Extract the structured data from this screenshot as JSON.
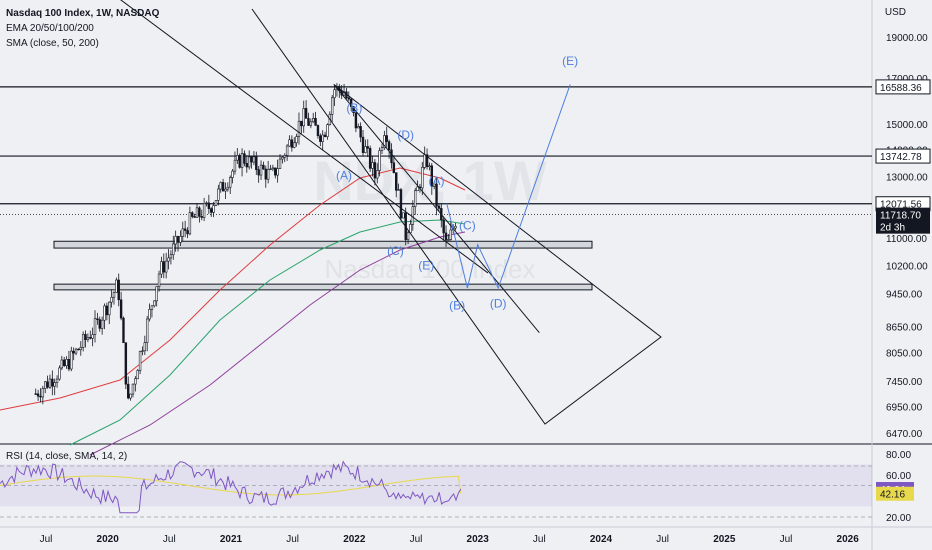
{
  "header": {
    "title": "Nasdaq 100 Index, 1W, NASDAQ",
    "indicator_ema": "EMA 20/50/100/200",
    "indicator_sma": "SMA (close, 50, 200)",
    "rsi_label": "RSI (14, close, SMA, 14, 2)",
    "currency": "USD",
    "watermark_symbol": "NDX, 1W",
    "watermark_name": "Nasdaq 100 Index"
  },
  "colors": {
    "ema_red": "#e03a3e",
    "ema_green": "#2aa36b",
    "ema_purple": "#8e3f9b",
    "wave_blue": "#4f7fe0",
    "rsi_line": "#7e57c2",
    "rsi_sma": "#e8d84c",
    "candles": "#131722"
  },
  "chart_data": [
    {
      "type": "candlestick",
      "x_axis": {
        "tick_labels": [
          "Jul",
          "2020",
          "Jul",
          "2021",
          "Jul",
          "2022",
          "Jul",
          "2023",
          "Jul",
          "2024",
          "Jul",
          "2025",
          "Jul",
          "2026"
        ]
      },
      "y_axis": {
        "scale": "log",
        "ticks": [
          19000,
          17000,
          15000,
          14000,
          13000,
          12000,
          11000,
          10200,
          9450,
          8650,
          8050,
          7450,
          6950,
          6470
        ],
        "tick_labels": [
          "19000.00",
          "17000.00",
          "15000.00",
          "14000.00",
          "13000.00",
          "12000.00",
          "11000.00",
          "10200.00",
          "9450.00",
          "8650.00",
          "8050.00",
          "7450.00",
          "6950.00",
          "6470.00"
        ]
      },
      "price_points": [
        {
          "x": "2019-06",
          "y": 7200
        },
        {
          "x": "2019-09",
          "y": 7800
        },
        {
          "x": "2019-12",
          "y": 8700
        },
        {
          "x": "2020-02",
          "y": 9700
        },
        {
          "x": "2020-03",
          "y": 7000
        },
        {
          "x": "2020-06",
          "y": 10000
        },
        {
          "x": "2020-09",
          "y": 11500
        },
        {
          "x": "2020-11",
          "y": 12000
        },
        {
          "x": "2021-02",
          "y": 13700
        },
        {
          "x": "2021-05",
          "y": 13000
        },
        {
          "x": "2021-08",
          "y": 15300
        },
        {
          "x": "2021-10",
          "y": 14500
        },
        {
          "x": "2021-11",
          "y": 16500
        },
        {
          "x": "2021-12",
          "y": 16400
        },
        {
          "x": "2022-03",
          "y": 13000
        },
        {
          "x": "2022-04",
          "y": 15000
        },
        {
          "x": "2022-06",
          "y": 11100
        },
        {
          "x": "2022-08",
          "y": 13700
        },
        {
          "x": "2022-10",
          "y": 10700
        },
        {
          "x": "2022-11",
          "y": 11718.7
        }
      ],
      "horizontal_levels": [
        {
          "value": 16588.36,
          "label": "16588.36"
        },
        {
          "value": 13742.78,
          "label": "13742.78"
        },
        {
          "value": 12071.56,
          "label": "12071.56"
        }
      ],
      "last_price": {
        "value": 11718.7,
        "label": "11718.70",
        "countdown": "2d 3h"
      },
      "zones": [
        {
          "low": 10700,
          "high": 10900
        },
        {
          "low": 9550,
          "high": 9700
        }
      ],
      "projection_lines": [
        [
          {
            "x": "2019-11",
            "y": 22500
          },
          {
            "x": "2023-02",
            "y": 10000
          }
        ],
        [
          {
            "x": "2021-11",
            "y": 16700
          },
          {
            "x": "2023-07",
            "y": 8500
          }
        ]
      ],
      "elliott_labels": [
        {
          "text": "(B)",
          "x": "2022-01",
          "y": 15500
        },
        {
          "text": "(A)",
          "x": "2021-12",
          "y": 12900
        },
        {
          "text": "(D)",
          "x": "2022-06",
          "y": 14400
        },
        {
          "text": "(C)",
          "x": "2022-05",
          "y": 10500
        },
        {
          "text": "(A)",
          "x": "2022-09",
          "y": 12700
        },
        {
          "text": "(E)",
          "x": "2022-08",
          "y": 10100
        },
        {
          "text": "(C)",
          "x": "2022-12",
          "y": 11250
        },
        {
          "text": "(B)",
          "x": "2022-11",
          "y": 9050
        },
        {
          "text": "(D)",
          "x": "2023-03",
          "y": 9100
        },
        {
          "text": "(E)",
          "x": "2023-10",
          "y": 17600
        }
      ],
      "wave_path": [
        {
          "x": "2022-10",
          "y": 12071.56
        },
        {
          "x": "2022-12",
          "y": 9600
        },
        {
          "x": "2023-01",
          "y": 10800
        },
        {
          "x": "2023-03",
          "y": 9600
        },
        {
          "x": "2023-10",
          "y": 16700
        }
      ],
      "moving_average_lines": [
        "EMA 20",
        "EMA 50",
        "EMA 100",
        "EMA 200"
      ]
    },
    {
      "type": "line",
      "name": "RSI",
      "y_axis": {
        "ticks": [
          80,
          60,
          20
        ],
        "tick_labels": [
          "80.00",
          "60.00",
          "20.00"
        ]
      },
      "values": {
        "rsi": 46.64,
        "rsi_sma": 42.16
      },
      "value_labels": [
        "46.64",
        "42.16"
      ],
      "band": {
        "upper": 70,
        "lower": 30
      }
    }
  ]
}
